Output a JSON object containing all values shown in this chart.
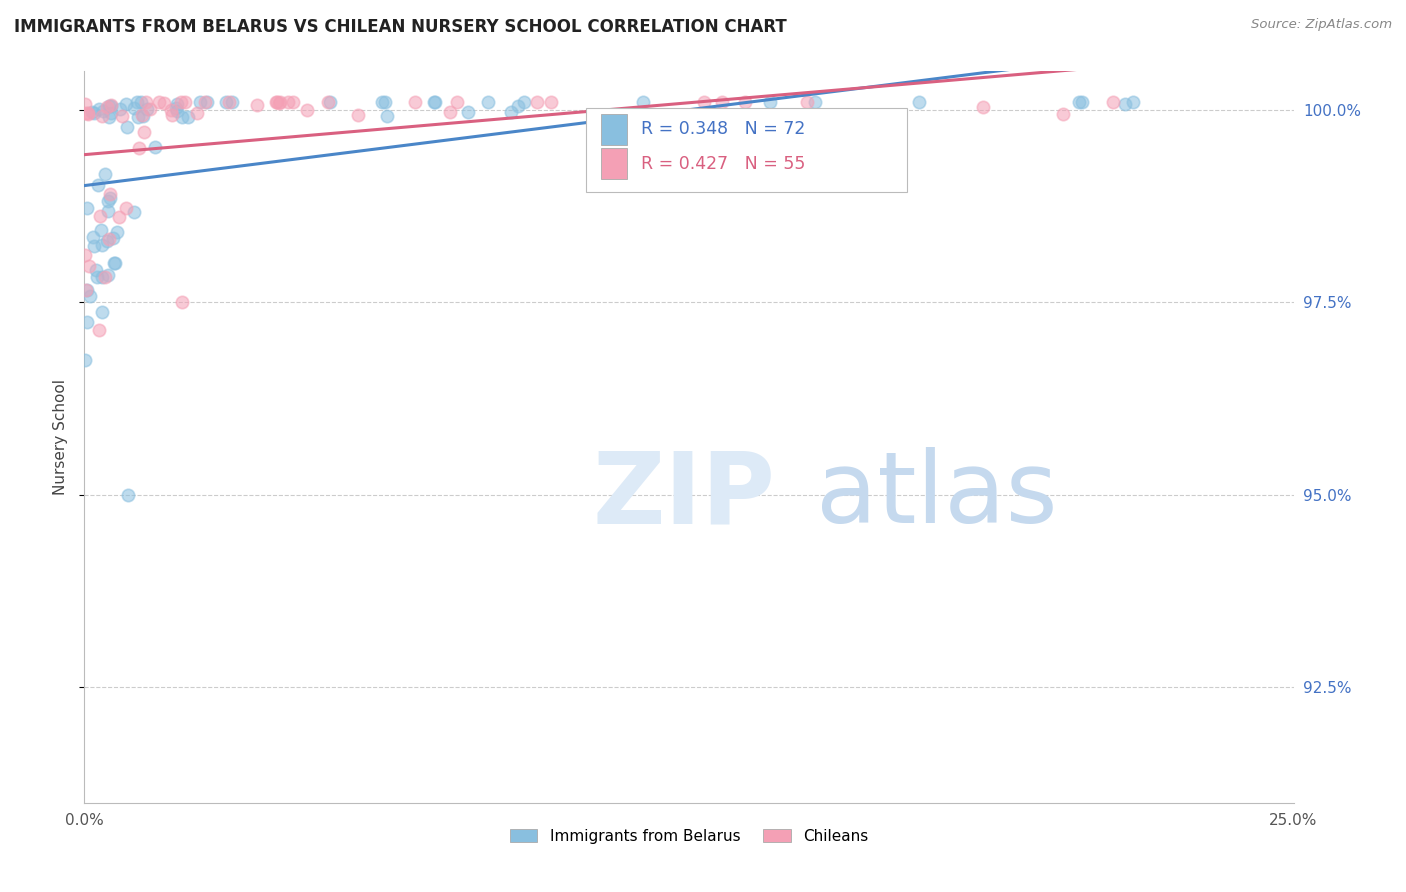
{
  "title": "IMMIGRANTS FROM BELARUS VS CHILEAN NURSERY SCHOOL CORRELATION CHART",
  "source": "Source: ZipAtlas.com",
  "ylabel": "Nursery School",
  "legend_blue_r": "R = 0.348",
  "legend_blue_n": "N = 72",
  "legend_pink_r": "R = 0.427",
  "legend_pink_n": "N = 55",
  "legend_label_blue": "Immigrants from Belarus",
  "legend_label_pink": "Chileans",
  "blue_color": "#89bfdf",
  "pink_color": "#f4a0b5",
  "blue_line_color": "#4a86c8",
  "pink_line_color": "#d96080",
  "blue_marker_color": "#89bfdf",
  "pink_marker_color": "#f4a0b5",
  "ytick_labels": [
    "92.5%",
    "95.0%",
    "97.5%",
    "100.0%"
  ],
  "yticks": [
    0.925,
    0.95,
    0.975,
    1.0
  ],
  "xlim": [
    0.0,
    0.25
  ],
  "ylim": [
    0.91,
    1.005
  ]
}
